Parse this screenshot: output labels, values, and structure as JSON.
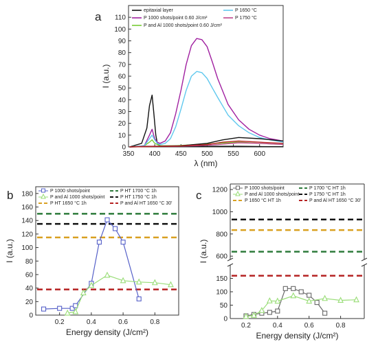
{
  "chart_data": [
    {
      "panel": "a",
      "type": "line",
      "xlabel": "λ (nm)",
      "ylabel": "I (a.u.)",
      "xlim": [
        350,
        645
      ],
      "ylim": [
        0,
        120
      ],
      "xticks": [
        350,
        400,
        450,
        500,
        550,
        600
      ],
      "yticks": [
        0,
        10,
        20,
        30,
        40,
        50,
        60,
        70,
        80,
        90,
        100,
        110
      ],
      "legend_position": "top",
      "series": [
        {
          "name": "epitaxial layer",
          "color": "#111111",
          "x": [
            352,
            375,
            385,
            390,
            395,
            398,
            402,
            405,
            410,
            420,
            440,
            470,
            500,
            530,
            560,
            600,
            645
          ],
          "y": [
            0,
            3,
            16,
            35,
            44,
            30,
            10,
            3,
            1,
            0.5,
            0.5,
            0.5,
            0.5,
            0.5,
            0.5,
            0.3,
            0.2
          ]
        },
        {
          "name": "P 1000 shots/point 0.60 J/cm²",
          "color": "#a020a0",
          "x": [
            352,
            380,
            390,
            395,
            400,
            405,
            410,
            420,
            430,
            440,
            450,
            460,
            470,
            480,
            490,
            500,
            510,
            520,
            540,
            560,
            580,
            600,
            620,
            645
          ],
          "y": [
            0,
            1,
            10,
            15,
            7,
            4,
            3,
            5,
            12,
            28,
            48,
            70,
            86,
            92,
            91,
            85,
            72,
            58,
            36,
            23,
            15,
            10,
            7,
            5
          ]
        },
        {
          "name": "P and Al 1000 shots/point 0.60 J/cm²",
          "color": "#77cc33",
          "x": [
            352,
            380,
            390,
            395,
            400,
            410,
            440,
            480,
            520,
            560,
            600,
            645
          ],
          "y": [
            0,
            1,
            4,
            6,
            3,
            1,
            1,
            2,
            3,
            4,
            3,
            2
          ]
        },
        {
          "name": "P 1650 °C",
          "color": "#5fc8ee",
          "x": [
            352,
            380,
            390,
            395,
            400,
            405,
            410,
            420,
            430,
            440,
            450,
            460,
            470,
            480,
            490,
            500,
            510,
            520,
            540,
            560,
            580,
            600,
            620,
            645
          ],
          "y": [
            0,
            1,
            7,
            10,
            6,
            3,
            2,
            3,
            7,
            17,
            32,
            48,
            60,
            64,
            63,
            58,
            50,
            42,
            27,
            18,
            12,
            8,
            6,
            4
          ]
        },
        {
          "name": "P 1750 °C",
          "color": "#c0448c",
          "x": [
            352,
            380,
            440,
            480,
            520,
            560,
            600,
            645
          ],
          "y": [
            0,
            0.5,
            0.5,
            1,
            2,
            3.5,
            3,
            2
          ]
        },
        {
          "name": "",
          "color": "#111111",
          "x": [
            352,
            450,
            500,
            530,
            560,
            600,
            645
          ],
          "y": [
            0,
            1,
            3,
            6,
            8,
            7,
            5
          ]
        },
        {
          "name": "",
          "color": "#b52020",
          "x": [
            352,
            450,
            500,
            530,
            560,
            600,
            645
          ],
          "y": [
            0,
            0.8,
            2,
            4,
            5,
            4,
            3
          ]
        }
      ]
    },
    {
      "panel": "b",
      "type": "line",
      "xlabel": "Energy density (J/cm²)",
      "ylabel": "I (a.u.)",
      "xlim": [
        0.05,
        0.95
      ],
      "ylim": [
        0,
        190
      ],
      "xticks": [
        0.2,
        0.4,
        0.6,
        0.8
      ],
      "yticks": [
        0,
        20,
        40,
        60,
        80,
        100,
        120,
        140,
        160,
        180
      ],
      "series": [
        {
          "name": "P 1000 shots/point",
          "color": "#5560c8",
          "marker": "square",
          "x": [
            0.1,
            0.2,
            0.28,
            0.3,
            0.4,
            0.45,
            0.5,
            0.55,
            0.6,
            0.7
          ],
          "y": [
            9,
            10,
            10,
            14,
            47,
            108,
            141,
            128,
            108,
            24
          ]
        },
        {
          "name": "P and Al 1000 shots/point",
          "color": "#99dd77",
          "marker": "triangle",
          "x": [
            0.25,
            0.3,
            0.35,
            0.4,
            0.5,
            0.6,
            0.7,
            0.8,
            0.9
          ],
          "y": [
            3,
            5,
            33,
            44,
            59,
            51,
            49,
            48,
            45
          ]
        }
      ],
      "hlines": [
        {
          "name": "P HT 1700 °C 1h",
          "color": "#2c7a3a",
          "y": 150
        },
        {
          "name": "P HT 1750 °C 1h",
          "color": "#111111",
          "y": 135
        },
        {
          "name": "P HT 1650 °C 1h",
          "color": "#d9a020",
          "y": 115
        },
        {
          "name": "P and Al HT 1650 °C 30'",
          "color": "#b52020",
          "y": 38
        }
      ]
    },
    {
      "panel": "c",
      "type": "line",
      "xlabel": "Energy density (J/cm²)",
      "ylabel": "I (a.u.)",
      "xlim": [
        0.1,
        0.95
      ],
      "ylim_lower": [
        0,
        200
      ],
      "ylim_upper": [
        570,
        1250
      ],
      "axis_break": true,
      "xticks": [
        0.2,
        0.4,
        0.6,
        0.8
      ],
      "yticks": [
        0,
        50,
        100,
        150,
        600,
        800,
        1000,
        1200
      ],
      "series": [
        {
          "name": "P 1000 shots/point",
          "color": "#666666",
          "marker": "square",
          "x": [
            0.2,
            0.25,
            0.3,
            0.35,
            0.4,
            0.45,
            0.5,
            0.55,
            0.6,
            0.65,
            0.7
          ],
          "y": [
            10,
            15,
            20,
            23,
            28,
            112,
            112,
            100,
            87,
            60,
            20
          ]
        },
        {
          "name": "P and Al 1000 shots/point",
          "color": "#99dd77",
          "marker": "triangle",
          "x": [
            0.2,
            0.25,
            0.3,
            0.35,
            0.4,
            0.5,
            0.6,
            0.7,
            0.8,
            0.9
          ],
          "y": [
            8,
            12,
            30,
            66,
            65,
            85,
            65,
            75,
            68,
            70
          ]
        }
      ],
      "hlines": [
        {
          "name": "P 1700 °C HT 1h",
          "color": "#2c7a3a",
          "y": 640
        },
        {
          "name": "P 1750 °C HT 1h",
          "color": "#111111",
          "y": 930
        },
        {
          "name": "P 1650 °C HT 1h",
          "color": "#d9a020",
          "y": 835
        },
        {
          "name": "P and Al HT 1650 °C 30'",
          "color": "#b52020",
          "y": 160
        }
      ]
    }
  ]
}
